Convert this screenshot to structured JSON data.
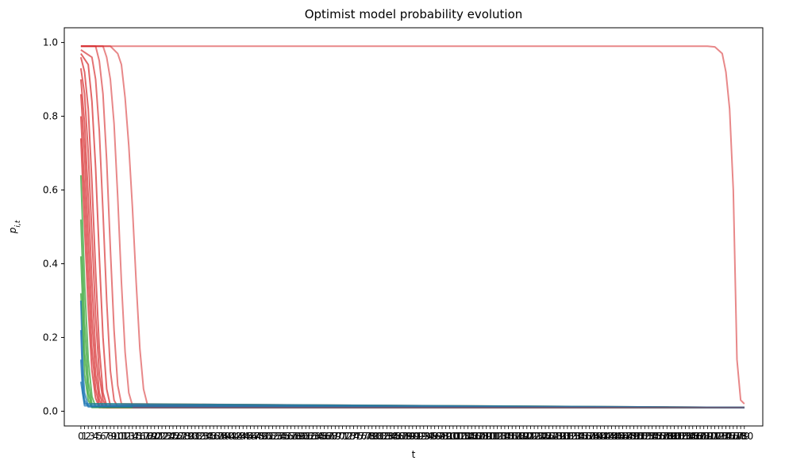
{
  "chart_data": {
    "type": "line",
    "title": "Optimist model probability evolution",
    "xlabel": "t",
    "ylabel": "p_{i,t}",
    "xlim": [
      -4.5,
      185
    ],
    "ylim": [
      -0.04,
      1.04
    ],
    "x_ticks": [
      0,
      1,
      2,
      3,
      4,
      5,
      6,
      7,
      8,
      9,
      10,
      11,
      12,
      13,
      14,
      15,
      16,
      17,
      18,
      19,
      20,
      21,
      22,
      23,
      24,
      25,
      26,
      27,
      28,
      29,
      30,
      31,
      32,
      33,
      34,
      35,
      36,
      37,
      38,
      39,
      40,
      41,
      42,
      43,
      44,
      45,
      46,
      47,
      48,
      49,
      50,
      51,
      52,
      53,
      54,
      55,
      56,
      57,
      58,
      59,
      60,
      61,
      62,
      63,
      64,
      65,
      66,
      67,
      68,
      69,
      70,
      71,
      72,
      73,
      74,
      75,
      76,
      77,
      78,
      79,
      80,
      81,
      82,
      83,
      84,
      85,
      86,
      87,
      88,
      89,
      90,
      91,
      92,
      93,
      94,
      95,
      96,
      97,
      98,
      99,
      100,
      101,
      102,
      103,
      104,
      105,
      106,
      107,
      108,
      109,
      110,
      111,
      112,
      113,
      114,
      115,
      116,
      117,
      118,
      119,
      120,
      121,
      122,
      123,
      124,
      125,
      126,
      127,
      128,
      129,
      130,
      131,
      132,
      133,
      134,
      135,
      136,
      137,
      138,
      139,
      140,
      141,
      142,
      143,
      144,
      145,
      146,
      147,
      148,
      149,
      150,
      151,
      152,
      153,
      154,
      155,
      156,
      157,
      158,
      159,
      160,
      161,
      162,
      163,
      164,
      165,
      166,
      167,
      168,
      169,
      170,
      171,
      172,
      173,
      174,
      175,
      176,
      177,
      178,
      179,
      180
    ],
    "y_ticks": [
      0.0,
      0.2,
      0.4,
      0.6,
      0.8,
      1.0
    ],
    "y_tick_labels": [
      "0.0",
      "0.2",
      "0.4",
      "0.6",
      "0.8",
      "1.0"
    ],
    "grid": false,
    "legend": "none",
    "x_range": [
      0,
      180
    ],
    "floor_value": 0.01,
    "series": [
      {
        "color": "#d62728",
        "opacity": 0.55,
        "points": [
          [
            0,
            0.99
          ],
          [
            9,
            0.99
          ],
          [
            10,
            0.99
          ],
          [
            30,
            0.99
          ],
          [
            150,
            0.99
          ],
          [
            170,
            0.99
          ],
          [
            172,
            0.988
          ],
          [
            174,
            0.97
          ],
          [
            175,
            0.92
          ],
          [
            176,
            0.82
          ],
          [
            177,
            0.6
          ],
          [
            178,
            0.14
          ],
          [
            179,
            0.03
          ],
          [
            180,
            0.02
          ]
        ]
      },
      {
        "color": "#d62728",
        "opacity": 0.55,
        "points": [
          [
            0,
            0.99
          ],
          [
            8,
            0.99
          ],
          [
            10,
            0.97
          ],
          [
            11,
            0.94
          ],
          [
            12,
            0.85
          ],
          [
            13,
            0.72
          ],
          [
            14,
            0.55
          ],
          [
            15,
            0.35
          ],
          [
            16,
            0.17
          ],
          [
            17,
            0.06
          ],
          [
            18,
            0.02
          ],
          [
            19,
            0.01
          ],
          [
            180,
            0.01
          ]
        ]
      },
      {
        "color": "#d62728",
        "opacity": 0.55,
        "points": [
          [
            0,
            0.99
          ],
          [
            6,
            0.99
          ],
          [
            7,
            0.96
          ],
          [
            8,
            0.9
          ],
          [
            9,
            0.78
          ],
          [
            10,
            0.58
          ],
          [
            11,
            0.35
          ],
          [
            12,
            0.16
          ],
          [
            13,
            0.05
          ],
          [
            14,
            0.015
          ],
          [
            180,
            0.01
          ]
        ]
      },
      {
        "color": "#d62728",
        "opacity": 0.6,
        "points": [
          [
            0,
            0.99
          ],
          [
            4,
            0.99
          ],
          [
            5,
            0.95
          ],
          [
            6,
            0.86
          ],
          [
            7,
            0.68
          ],
          [
            8,
            0.44
          ],
          [
            9,
            0.22
          ],
          [
            10,
            0.07
          ],
          [
            11,
            0.02
          ],
          [
            180,
            0.01
          ]
        ]
      },
      {
        "color": "#d62728",
        "opacity": 0.65,
        "points": [
          [
            0,
            0.98
          ],
          [
            3,
            0.96
          ],
          [
            4,
            0.9
          ],
          [
            5,
            0.76
          ],
          [
            6,
            0.54
          ],
          [
            7,
            0.3
          ],
          [
            8,
            0.11
          ],
          [
            9,
            0.03
          ],
          [
            10,
            0.012
          ],
          [
            180,
            0.01
          ]
        ]
      },
      {
        "color": "#d62728",
        "opacity": 0.7,
        "points": [
          [
            0,
            0.97
          ],
          [
            2,
            0.94
          ],
          [
            3,
            0.84
          ],
          [
            4,
            0.66
          ],
          [
            5,
            0.42
          ],
          [
            6,
            0.2
          ],
          [
            7,
            0.06
          ],
          [
            8,
            0.015
          ],
          [
            180,
            0.01
          ]
        ]
      },
      {
        "color": "#d62728",
        "opacity": 0.7,
        "points": [
          [
            0,
            0.96
          ],
          [
            1,
            0.92
          ],
          [
            2,
            0.82
          ],
          [
            3,
            0.62
          ],
          [
            4,
            0.38
          ],
          [
            5,
            0.17
          ],
          [
            6,
            0.05
          ],
          [
            7,
            0.015
          ],
          [
            180,
            0.01
          ]
        ]
      },
      {
        "color": "#d62728",
        "opacity": 0.7,
        "points": [
          [
            0,
            0.93
          ],
          [
            1,
            0.86
          ],
          [
            2,
            0.7
          ],
          [
            3,
            0.48
          ],
          [
            4,
            0.26
          ],
          [
            5,
            0.1
          ],
          [
            6,
            0.03
          ],
          [
            7,
            0.01
          ],
          [
            180,
            0.01
          ]
        ]
      },
      {
        "color": "#d62728",
        "opacity": 0.7,
        "points": [
          [
            0,
            0.9
          ],
          [
            1,
            0.78
          ],
          [
            2,
            0.58
          ],
          [
            3,
            0.35
          ],
          [
            4,
            0.16
          ],
          [
            5,
            0.05
          ],
          [
            6,
            0.015
          ],
          [
            180,
            0.01
          ]
        ]
      },
      {
        "color": "#d62728",
        "opacity": 0.7,
        "points": [
          [
            0,
            0.86
          ],
          [
            1,
            0.7
          ],
          [
            2,
            0.47
          ],
          [
            3,
            0.25
          ],
          [
            4,
            0.1
          ],
          [
            5,
            0.03
          ],
          [
            6,
            0.01
          ],
          [
            180,
            0.01
          ]
        ]
      },
      {
        "color": "#d62728",
        "opacity": 0.7,
        "points": [
          [
            0,
            0.8
          ],
          [
            1,
            0.6
          ],
          [
            2,
            0.37
          ],
          [
            3,
            0.17
          ],
          [
            4,
            0.06
          ],
          [
            5,
            0.015
          ],
          [
            180,
            0.01
          ]
        ]
      },
      {
        "color": "#d62728",
        "opacity": 0.7,
        "points": [
          [
            0,
            0.74
          ],
          [
            1,
            0.5
          ],
          [
            2,
            0.28
          ],
          [
            3,
            0.11
          ],
          [
            4,
            0.035
          ],
          [
            5,
            0.01
          ],
          [
            180,
            0.01
          ]
        ]
      },
      {
        "color": "#2ca02c",
        "opacity": 0.7,
        "points": [
          [
            0,
            0.64
          ],
          [
            1,
            0.35
          ],
          [
            2,
            0.14
          ],
          [
            3,
            0.04
          ],
          [
            4,
            0.012
          ],
          [
            180,
            0.01
          ]
        ]
      },
      {
        "color": "#2ca02c",
        "opacity": 0.7,
        "points": [
          [
            0,
            0.52
          ],
          [
            1,
            0.24
          ],
          [
            2,
            0.08
          ],
          [
            3,
            0.02
          ],
          [
            180,
            0.01
          ]
        ]
      },
      {
        "color": "#2ca02c",
        "opacity": 0.7,
        "points": [
          [
            0,
            0.42
          ],
          [
            1,
            0.16
          ],
          [
            2,
            0.05
          ],
          [
            3,
            0.012
          ],
          [
            180,
            0.01
          ]
        ]
      },
      {
        "color": "#2ca02c",
        "opacity": 0.7,
        "points": [
          [
            0,
            0.32
          ],
          [
            1,
            0.1
          ],
          [
            2,
            0.03
          ],
          [
            3,
            0.01
          ],
          [
            180,
            0.01
          ]
        ]
      },
      {
        "color": "#1f77b4",
        "opacity": 0.75,
        "points": [
          [
            0,
            0.3
          ],
          [
            0.5,
            0.12
          ],
          [
            1,
            0.05
          ],
          [
            2,
            0.015
          ],
          [
            180,
            0.01
          ]
        ]
      },
      {
        "color": "#1f77b4",
        "opacity": 0.75,
        "points": [
          [
            0,
            0.22
          ],
          [
            0.5,
            0.08
          ],
          [
            1,
            0.03
          ],
          [
            2,
            0.012
          ],
          [
            180,
            0.01
          ]
        ]
      },
      {
        "color": "#1f77b4",
        "opacity": 0.75,
        "points": [
          [
            0,
            0.14
          ],
          [
            0.5,
            0.05
          ],
          [
            1,
            0.02
          ],
          [
            180,
            0.01
          ]
        ]
      },
      {
        "color": "#1f77b4",
        "opacity": 0.75,
        "points": [
          [
            0,
            0.08
          ],
          [
            1,
            0.015
          ],
          [
            180,
            0.01
          ]
        ]
      },
      {
        "color": "#6b5b76",
        "opacity": 1.0,
        "points": [
          [
            14,
            0.01
          ],
          [
            180,
            0.01
          ]
        ]
      }
    ]
  }
}
